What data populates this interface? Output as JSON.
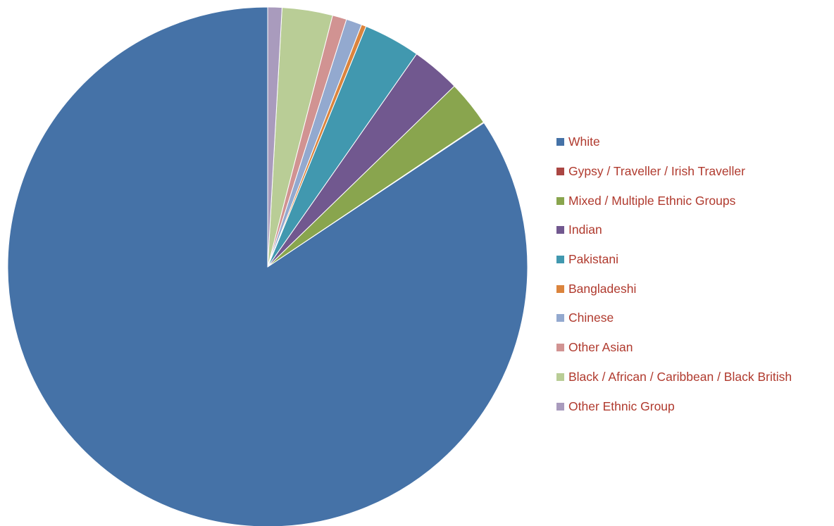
{
  "chart_data": {
    "type": "pie",
    "title": "",
    "legend_position": "right",
    "slices": [
      {
        "label": "White",
        "value": 86.0,
        "color": "#4572A7"
      },
      {
        "label": "Gypsy / Traveller / Irish Traveller",
        "value": 0.05,
        "color": "#AA4643"
      },
      {
        "label": "Mixed / Multiple Ethnic Groups",
        "value": 2.9,
        "color": "#89A54E"
      },
      {
        "label": "Indian",
        "value": 3.1,
        "color": "#71588F"
      },
      {
        "label": "Pakistani",
        "value": 3.6,
        "color": "#4198AF"
      },
      {
        "label": "Bangladeshi",
        "value": 0.3,
        "color": "#DB843D"
      },
      {
        "label": "Chinese",
        "value": 1.0,
        "color": "#93A9CF"
      },
      {
        "label": "Other Asian",
        "value": 0.9,
        "color": "#D19392"
      },
      {
        "label": "Black / African / Caribbean / Black British",
        "value": 3.2,
        "color": "#B9CD96"
      },
      {
        "label": "Other Ethnic Group",
        "value": 0.9,
        "color": "#A99BBD"
      }
    ]
  }
}
